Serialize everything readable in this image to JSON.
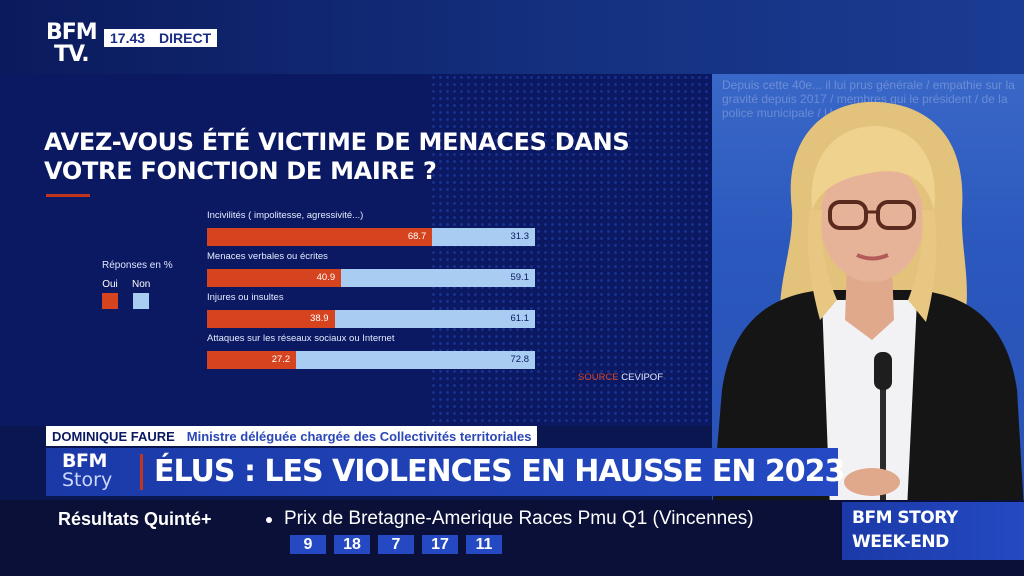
{
  "channel": {
    "logo_line1": "BFM",
    "logo_line2": "TV.",
    "time": "17.43",
    "live": "DIRECT"
  },
  "chart_data": {
    "type": "bar",
    "title_lines": [
      "AVEZ-VOUS ÉTÉ VICTIME DE MENACES DANS",
      "VOTRE FONCTION DE MAIRE ?"
    ],
    "legend_title": "Réponses en %",
    "series": [
      {
        "name": "Oui",
        "color": "#d6441f",
        "values": [
          68.7,
          40.9,
          38.9,
          27.2
        ]
      },
      {
        "name": "Non",
        "color": "#a9cdf2",
        "values": [
          31.3,
          59.1,
          61.1,
          72.8
        ]
      }
    ],
    "categories": [
      "Incivilités ( impolitesse, agressivité...)",
      "Menaces verbales ou écrites",
      "Injures ou insultes",
      "Attaques sur les réseaux sociaux ou Internet"
    ],
    "value_labels": [
      [
        "68.7",
        "31.3"
      ],
      [
        "40.9",
        "59.1"
      ],
      [
        "38.9",
        "61.1"
      ],
      [
        "27.2",
        "72.8"
      ]
    ],
    "source_word": "SOURCE",
    "source_name": "CEVIPOF"
  },
  "studio": {
    "background_text": "Depuis cette 40e... il lui prus générale / empathie sur la gravité depuis 2017 / membres qui le président / de la police municipale / Une prise..."
  },
  "guest": {
    "name": "DOMINIQUE FAURE",
    "role": "Ministre déléguée chargée des Collectivités territoriales"
  },
  "show": {
    "logo_a": "BFM",
    "logo_b": "Story",
    "headline": "ÉLUS : LES VIOLENCES EN HAUSSE EN 2023"
  },
  "ticker": {
    "title": "Résultats Quinté+",
    "text": "Prix de Bretagne-Amerique Races Pmu Q1 (Vincennes)",
    "numbers": [
      "9",
      "18",
      "7",
      "17",
      "11"
    ],
    "brand_line1": "BFM STORY",
    "brand_line2": "WEEK-END"
  }
}
